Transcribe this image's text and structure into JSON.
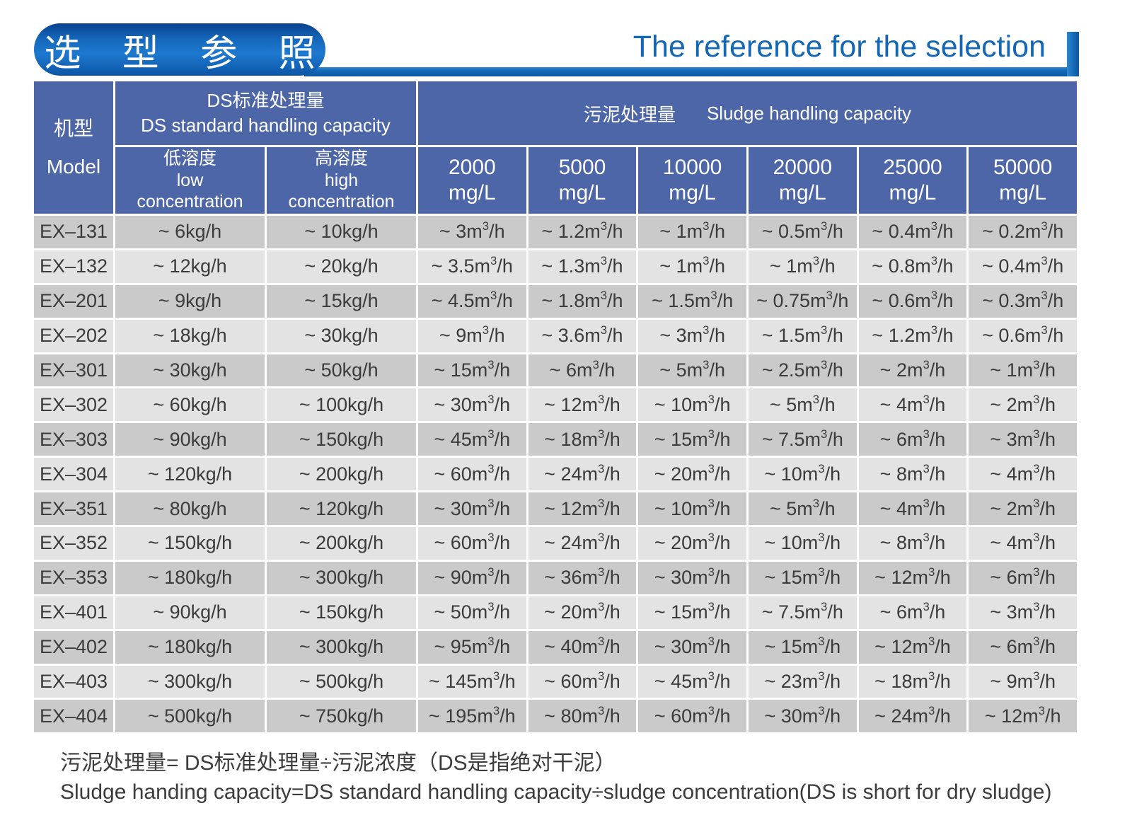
{
  "header": {
    "title_zh": "选 型 参 照",
    "title_en": "The reference for the selection",
    "accent_color": "#1268b5"
  },
  "table": {
    "model_header": "机型\nModel",
    "ds_header": "DS标准处理量\nDS standard handling capacity",
    "sludge_header_zh": "污泥处理量",
    "sludge_header_en": "Sludge handling capacity",
    "sub_headers": [
      "低溶度\nlow\nconcentration",
      "高溶度\nhigh\nconcentration",
      "2000\nmg/L",
      "5000\nmg/L",
      "10000\nmg/L",
      "20000\nmg/L",
      "25000\nmg/L",
      "50000\nmg/L"
    ],
    "rows": [
      {
        "model": "EX–131",
        "cells": [
          "~ 6kg/h",
          "~ 10kg/h",
          "~ 3m³/h",
          "~ 1.2m³/h",
          "~ 1m³/h",
          "~ 0.5m³/h",
          "~ 0.4m³/h",
          "~ 0.2m³/h"
        ]
      },
      {
        "model": "EX–132",
        "cells": [
          "~ 12kg/h",
          "~ 20kg/h",
          "~ 3.5m³/h",
          "~ 1.3m³/h",
          "~ 1m³/h",
          "~ 1m³/h",
          "~ 0.8m³/h",
          "~ 0.4m³/h"
        ]
      },
      {
        "model": "EX–201",
        "cells": [
          "~ 9kg/h",
          "~ 15kg/h",
          "~ 4.5m³/h",
          "~ 1.8m³/h",
          "~ 1.5m³/h",
          "~ 0.75m³/h",
          "~ 0.6m³/h",
          "~ 0.3m³/h"
        ]
      },
      {
        "model": "EX–202",
        "cells": [
          "~ 18kg/h",
          "~ 30kg/h",
          "~ 9m³/h",
          "~ 3.6m³/h",
          "~ 3m³/h",
          "~ 1.5m³/h",
          "~ 1.2m³/h",
          "~ 0.6m³/h"
        ]
      },
      {
        "model": "EX–301",
        "cells": [
          "~ 30kg/h",
          "~ 50kg/h",
          "~ 15m³/h",
          "~ 6m³/h",
          "~ 5m³/h",
          "~ 2.5m³/h",
          "~ 2m³/h",
          "~ 1m³/h"
        ]
      },
      {
        "model": "EX–302",
        "cells": [
          "~ 60kg/h",
          "~ 100kg/h",
          "~ 30m³/h",
          "~ 12m³/h",
          "~ 10m³/h",
          "~ 5m³/h",
          "~ 4m³/h",
          "~ 2m³/h"
        ]
      },
      {
        "model": "EX–303",
        "cells": [
          "~ 90kg/h",
          "~ 150kg/h",
          "~ 45m³/h",
          "~ 18m³/h",
          "~ 15m³/h",
          "~ 7.5m³/h",
          "~ 6m³/h",
          "~ 3m³/h"
        ]
      },
      {
        "model": "EX–304",
        "cells": [
          "~ 120kg/h",
          "~ 200kg/h",
          "~ 60m³/h",
          "~ 24m³/h",
          "~ 20m³/h",
          "~ 10m³/h",
          "~ 8m³/h",
          "~ 4m³/h"
        ]
      },
      {
        "model": "EX–351",
        "cells": [
          "~ 80kg/h",
          "~ 120kg/h",
          "~ 30m³/h",
          "~ 12m³/h",
          "~ 10m³/h",
          "~ 5m³/h",
          "~ 4m³/h",
          "~ 2m³/h"
        ]
      },
      {
        "model": "EX–352",
        "cells": [
          "~ 150kg/h",
          "~ 200kg/h",
          "~ 60m³/h",
          "~ 24m³/h",
          "~ 20m³/h",
          "~ 10m³/h",
          "~ 8m³/h",
          "~ 4m³/h"
        ]
      },
      {
        "model": "EX–353",
        "cells": [
          "~ 180kg/h",
          "~ 300kg/h",
          "~ 90m³/h",
          "~ 36m³/h",
          "~ 30m³/h",
          "~ 15m³/h",
          "~ 12m³/h",
          "~ 6m³/h"
        ]
      },
      {
        "model": "EX–401",
        "cells": [
          "~ 90kg/h",
          "~ 150kg/h",
          "~ 50m³/h",
          "~ 20m³/h",
          "~ 15m³/h",
          "~ 7.5m³/h",
          "~ 6m³/h",
          "~ 3m³/h"
        ]
      },
      {
        "model": "EX–402",
        "cells": [
          "~ 180kg/h",
          "~ 300kg/h",
          "~ 95m³/h",
          "~ 40m³/h",
          "~ 30m³/h",
          "~ 15m³/h",
          "~ 12m³/h",
          "~ 6m³/h"
        ]
      },
      {
        "model": "EX–403",
        "cells": [
          "~ 300kg/h",
          "~ 500kg/h",
          "~ 145m³/h",
          "~ 60m³/h",
          "~ 45m³/h",
          "~ 23m³/h",
          "~ 18m³/h",
          "~ 9m³/h"
        ]
      },
      {
        "model": "EX–404",
        "cells": [
          "~ 500kg/h",
          "~ 750kg/h",
          "~ 195m³/h",
          "~ 80m³/h",
          "~ 60m³/h",
          "~ 30m³/h",
          "~ 24m³/h",
          "~ 12m³/h"
        ]
      }
    ]
  },
  "footnote": {
    "zh": "污泥处理量= DS标准处理量÷污泥浓度（DS是指绝对干泥）",
    "en": "Sludge handing capacity=DS standard handling capacity÷sludge concentration(DS is short for dry sludge)"
  },
  "colors": {
    "header_blue": "#4d66a7",
    "row_dark": "#cbcaca",
    "row_light": "#e4e3e3",
    "accent_blue": "#1268b5",
    "title_text_blue": "#1467b4",
    "cell_text": "#3b3b3b"
  }
}
